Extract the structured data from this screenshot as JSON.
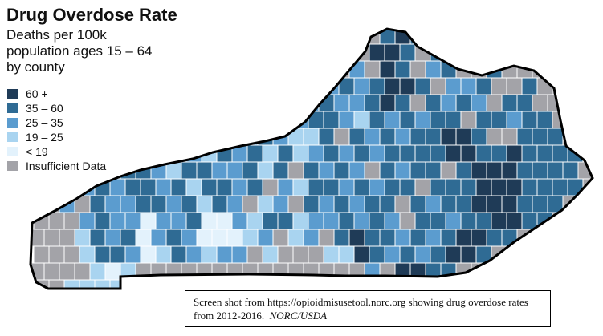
{
  "title": "Drug Overdose Rate",
  "subtitle_lines": [
    "Deaths per 100k",
    "population ages 15 – 64",
    "by county"
  ],
  "legend": [
    {
      "label": "60 +",
      "color": "#1f3b57"
    },
    {
      "label": "35 – 60",
      "color": "#2f6b94"
    },
    {
      "label": "25 – 35",
      "color": "#5b9ccf"
    },
    {
      "label": "19 – 25",
      "color": "#a9d4f0"
    },
    {
      "label": "< 19",
      "color": "#e3f2fc"
    },
    {
      "label": "Insufficient Data",
      "color": "#a3a3a8"
    }
  ],
  "caption": {
    "text": "Screen shot from https://opioidmisusetool.norc.org showing drug overdose rates from 2012-2016.",
    "source": "NORC/USDA"
  },
  "map": {
    "border_color": "#000000",
    "county_line_color": "#ffffff"
  }
}
